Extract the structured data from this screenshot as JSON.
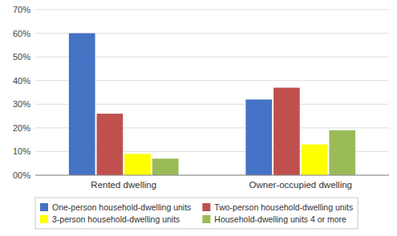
{
  "chart_data": {
    "type": "bar",
    "categories": [
      "Rented dwelling",
      "Owner-occupied dwelling"
    ],
    "series": [
      {
        "name": "One-person household-dwelling units",
        "color": "#4472C4",
        "values": [
          60,
          32
        ]
      },
      {
        "name": "Two-person household-dwelling units",
        "color": "#C0504D",
        "values": [
          26,
          37
        ]
      },
      {
        "name": "3-person household-dwelling units",
        "color": "#FFFF00",
        "values": [
          9,
          13
        ]
      },
      {
        "name": "Household-dwelling units 4 or more",
        "color": "#9BBB59",
        "values": [
          7,
          19
        ]
      }
    ],
    "ylim": [
      0,
      70
    ],
    "yticks": [
      {
        "value": 0,
        "label": "00%"
      },
      {
        "value": 10,
        "label": "10%"
      },
      {
        "value": 20,
        "label": "20%"
      },
      {
        "value": 30,
        "label": "30%"
      },
      {
        "value": 40,
        "label": "40%"
      },
      {
        "value": 50,
        "label": "50%"
      },
      {
        "value": 60,
        "label": "60%"
      },
      {
        "value": 70,
        "label": "70%"
      }
    ],
    "grid": true,
    "legend": "bottom"
  }
}
